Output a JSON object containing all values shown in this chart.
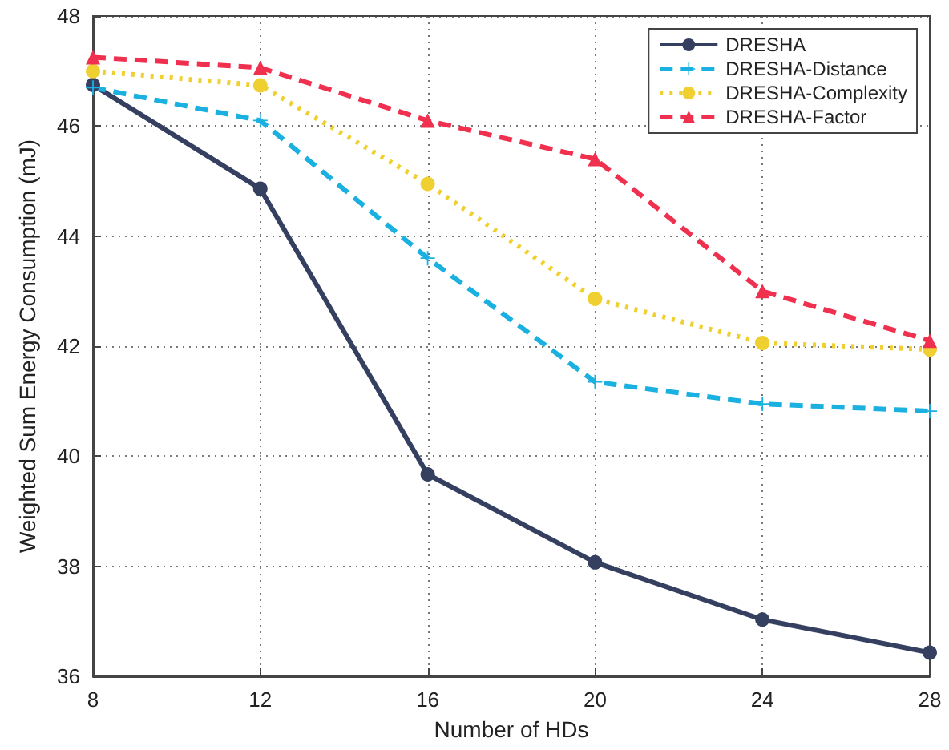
{
  "chart_data": {
    "type": "line",
    "xlabel": "Number of HDs",
    "ylabel": "Weighted Sum Energy Consumption (mJ)",
    "x": [
      8,
      12,
      16,
      20,
      24,
      28
    ],
    "xlim": [
      8,
      28
    ],
    "xticks": [
      8,
      12,
      16,
      20,
      24,
      28
    ],
    "ylim": [
      36,
      48
    ],
    "yticks": [
      36,
      38,
      40,
      42,
      44,
      46,
      48
    ],
    "grid": true,
    "legend": "top right",
    "series": [
      {
        "name": "DRESHA",
        "color": "#354060",
        "marker": "circle",
        "line_style": "solid",
        "values": [
          46.75,
          44.86,
          39.67,
          38.07,
          37.03,
          36.43
        ]
      },
      {
        "name": "DRESHA-Distance",
        "color": "#1ab0e0",
        "marker": "cross",
        "line_style": "dashed",
        "values": [
          46.7,
          46.1,
          43.6,
          41.35,
          40.95,
          40.82
        ]
      },
      {
        "name": "DRESHA-Complexity",
        "color": "#f0d030",
        "marker": "circle",
        "line_style": "dotted",
        "values": [
          47.0,
          46.74,
          44.95,
          42.86,
          42.06,
          41.94
        ]
      },
      {
        "name": "DRESHA-Factor",
        "color": "#f0304f",
        "marker": "triangle",
        "line_style": "dashed",
        "values": [
          47.25,
          47.06,
          46.1,
          45.4,
          43.0,
          42.1
        ]
      }
    ]
  }
}
